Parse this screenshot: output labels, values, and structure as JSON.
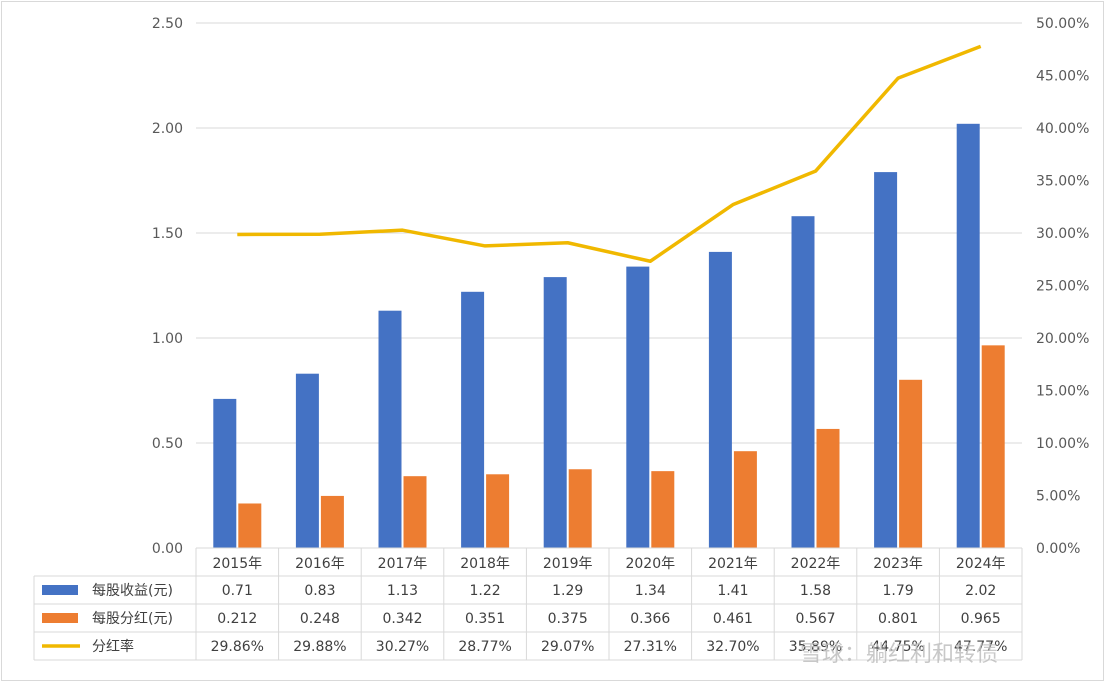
{
  "chart_data": {
    "type": "bar",
    "title": "",
    "categories": [
      "2015年",
      "2016年",
      "2017年",
      "2018年",
      "2019年",
      "2020年",
      "2021年",
      "2022年",
      "2023年",
      "2024年"
    ],
    "series": [
      {
        "name": "每股收益(元)",
        "type": "bar",
        "axis": "left",
        "color": "#4472c4",
        "values": [
          0.71,
          0.83,
          1.13,
          1.22,
          1.29,
          1.34,
          1.41,
          1.58,
          1.79,
          2.02
        ],
        "labels": [
          "0.71",
          "0.83",
          "1.13",
          "1.22",
          "1.29",
          "1.34",
          "1.41",
          "1.58",
          "1.79",
          "2.02"
        ]
      },
      {
        "name": "每股分红(元)",
        "type": "bar",
        "axis": "left",
        "color": "#ed7d31",
        "values": [
          0.212,
          0.248,
          0.342,
          0.351,
          0.375,
          0.366,
          0.461,
          0.567,
          0.801,
          0.965
        ],
        "labels": [
          "0.212",
          "0.248",
          "0.342",
          "0.351",
          "0.375",
          "0.366",
          "0.461",
          "0.567",
          "0.801",
          "0.965"
        ]
      },
      {
        "name": "分红率",
        "type": "line",
        "axis": "right",
        "color": "#f0b800",
        "values": [
          29.86,
          29.88,
          30.27,
          28.77,
          29.07,
          27.31,
          32.7,
          35.89,
          44.75,
          47.77
        ],
        "labels": [
          "29.86%",
          "29.88%",
          "30.27%",
          "28.77%",
          "29.07%",
          "27.31%",
          "32.70%",
          "35.89%",
          "44.75%",
          "47.77%"
        ]
      }
    ],
    "y_left": {
      "ylim": [
        0,
        2.5
      ],
      "ticks": [
        "0.00",
        "0.50",
        "1.00",
        "1.50",
        "2.00",
        "2.50"
      ]
    },
    "y_right": {
      "ylim": [
        0,
        50
      ],
      "ticks": [
        "0.00%",
        "5.00%",
        "10.00%",
        "15.00%",
        "20.00%",
        "25.00%",
        "30.00%",
        "35.00%",
        "40.00%",
        "45.00%",
        "50.00%"
      ]
    },
    "legend": "data-table-left",
    "grid": true
  },
  "watermark": "雪球：躺红利和转债"
}
